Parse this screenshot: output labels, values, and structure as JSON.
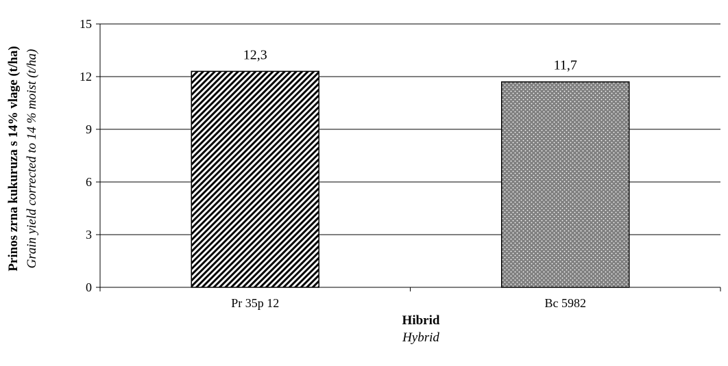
{
  "chart_data": {
    "type": "bar",
    "categories": [
      "Pr 35p 12",
      "Bc 5982"
    ],
    "values": [
      12.3,
      11.7
    ],
    "data_labels": [
      "12,3",
      "11,7"
    ],
    "ylim": [
      0,
      15
    ],
    "yticks": [
      0,
      3,
      6,
      9,
      12,
      15
    ],
    "xlabel": "Hibrid",
    "xlabel_secondary": "Hybrid",
    "ylabel": "Prinos zrna kukuruza s 14% vlage (t/ha)",
    "ylabel_secondary": "Grain yield corrected to 14 % moist (t/ha)",
    "grid": true,
    "bar_fills": [
      "diagonal-hatch",
      "dotted"
    ],
    "colors": {
      "hatch_bg": "#ffffff",
      "hatch_line": "#000000",
      "dot_bg": "#808080",
      "dot_fg": "#ffffff"
    }
  }
}
